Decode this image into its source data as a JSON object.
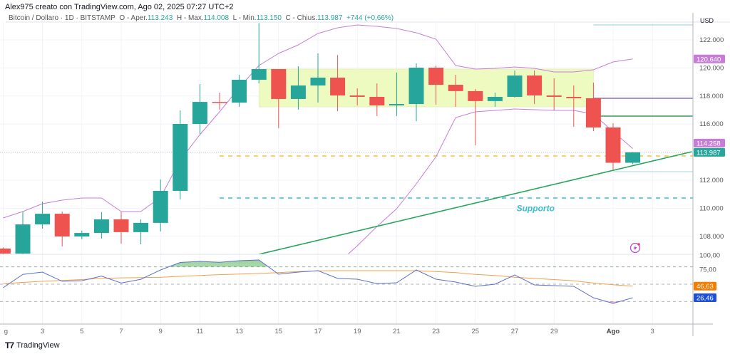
{
  "header": {
    "author_line": "Alex975 creato con TradingView.com, Ago 02, 2025 07:27 UTC+2",
    "symbol": "Bitcoin / Dollaro · 1D · BITSTAMP",
    "open_label": "O - Aper.",
    "open": "113.243",
    "high_label": "H - Max.",
    "high": "114.008",
    "low_label": "L - Min.",
    "low": "113.150",
    "close_label": "C - Chius.",
    "close": "113.987",
    "change": "+744 (+0,66%)"
  },
  "footer": {
    "brand": "TradingView",
    "logo_icon": "tradingview-logo-icon"
  },
  "colors": {
    "up": "#26a69a",
    "down": "#ef5350",
    "band": "#c77dd8",
    "rsi": "#5b6fd0",
    "rsi_ma": "#f5a04a",
    "trend": "#26a65b",
    "rect": "#eefbc0"
  },
  "chart_data": {
    "type": "candlestick",
    "currency": "USD",
    "price_ticks": [
      "122.000",
      "120.000",
      "118.000",
      "116.000",
      "112.000",
      "110.000",
      "108.000"
    ],
    "price_tick_values": [
      122000,
      120000,
      118000,
      116000,
      112000,
      110000,
      108000
    ],
    "time_ticks": [
      {
        "date": "2025-07-01",
        "label": "g"
      },
      {
        "date": "2025-07-03",
        "label": "3"
      },
      {
        "date": "2025-07-05",
        "label": "5"
      },
      {
        "date": "2025-07-07",
        "label": "7"
      },
      {
        "date": "2025-07-09",
        "label": "9"
      },
      {
        "date": "2025-07-11",
        "label": "11"
      },
      {
        "date": "2025-07-13",
        "label": "13"
      },
      {
        "date": "2025-07-15",
        "label": "15"
      },
      {
        "date": "2025-07-17",
        "label": "17"
      },
      {
        "date": "2025-07-19",
        "label": "19"
      },
      {
        "date": "2025-07-21",
        "label": "21"
      },
      {
        "date": "2025-07-23",
        "label": "23"
      },
      {
        "date": "2025-07-25",
        "label": "25"
      },
      {
        "date": "2025-07-27",
        "label": "27"
      },
      {
        "date": "2025-07-29",
        "label": "29"
      },
      {
        "date": "2025-08-01",
        "label": "Ago"
      },
      {
        "date": "2025-08-03",
        "label": "3"
      }
    ],
    "candles_columns": [
      "date",
      "open",
      "high",
      "low",
      "close"
    ],
    "candles": [
      [
        "2025-07-01",
        107130,
        107200,
        106700,
        106770
      ],
      [
        "2025-07-02",
        106770,
        109770,
        106700,
        108850
      ],
      [
        "2025-07-03",
        108850,
        110480,
        108550,
        109610
      ],
      [
        "2025-07-04",
        109610,
        109770,
        107280,
        107990
      ],
      [
        "2025-07-05",
        107990,
        108400,
        107790,
        108240
      ],
      [
        "2025-07-06",
        108240,
        109720,
        107840,
        109210
      ],
      [
        "2025-07-07",
        109210,
        109720,
        107480,
        108300
      ],
      [
        "2025-07-08",
        108300,
        109210,
        107430,
        108960
      ],
      [
        "2025-07-09",
        108960,
        112050,
        108350,
        111240
      ],
      [
        "2025-07-10",
        111240,
        116980,
        110630,
        116010
      ],
      [
        "2025-07-11",
        116010,
        118850,
        115300,
        117580
      ],
      [
        "2025-07-12",
        117580,
        118240,
        117030,
        117530
      ],
      [
        "2025-07-13",
        117530,
        119510,
        117230,
        119160
      ],
      [
        "2025-07-14",
        119160,
        123200,
        118900,
        119920
      ],
      [
        "2025-07-15",
        119920,
        119920,
        115710,
        117790
      ],
      [
        "2025-07-16",
        117790,
        120120,
        117030,
        118750
      ],
      [
        "2025-07-17",
        118750,
        121040,
        117530,
        119310
      ],
      [
        "2025-07-18",
        119310,
        120930,
        116920,
        118040
      ],
      [
        "2025-07-19",
        118040,
        118550,
        117330,
        117940
      ],
      [
        "2025-07-20",
        117940,
        118900,
        116570,
        117330
      ],
      [
        "2025-07-21",
        117330,
        119670,
        116570,
        117430
      ],
      [
        "2025-07-22",
        117430,
        120330,
        116210,
        120020
      ],
      [
        "2025-07-23",
        120020,
        120170,
        117380,
        118800
      ],
      [
        "2025-07-24",
        118800,
        119510,
        117230,
        118350
      ],
      [
        "2025-07-25",
        118350,
        118500,
        114490,
        117640
      ],
      [
        "2025-07-26",
        117640,
        118240,
        117230,
        117940
      ],
      [
        "2025-07-27",
        117940,
        119820,
        117890,
        119460
      ],
      [
        "2025-07-28",
        119460,
        119820,
        117430,
        118040
      ],
      [
        "2025-07-29",
        118040,
        119260,
        116980,
        117940
      ],
      [
        "2025-07-30",
        117940,
        118750,
        115810,
        117840
      ],
      [
        "2025-07-31",
        117840,
        118950,
        115500,
        115760
      ],
      [
        "2025-08-01",
        115760,
        116060,
        112660,
        113243
      ],
      [
        "2025-08-02",
        113243,
        114008,
        113150,
        113987
      ]
    ],
    "upper_band": [
      [
        "2025-07-01",
        109310
      ],
      [
        "2025-07-02",
        109767
      ],
      [
        "2025-07-03",
        110325
      ],
      [
        "2025-07-04",
        110579
      ],
      [
        "2025-07-05",
        110731
      ],
      [
        "2025-07-06",
        110731
      ],
      [
        "2025-07-07",
        109767
      ],
      [
        "2025-07-08",
        109767
      ],
      [
        "2025-07-09",
        110782
      ],
      [
        "2025-07-10",
        113422
      ],
      [
        "2025-07-11",
        115249
      ],
      [
        "2025-07-12",
        116873
      ],
      [
        "2025-07-13",
        118599
      ],
      [
        "2025-07-14",
        120173
      ],
      [
        "2025-07-15",
        121036
      ],
      [
        "2025-07-16",
        121645
      ],
      [
        "2025-07-17",
        122457
      ],
      [
        "2025-07-18",
        122863
      ],
      [
        "2025-07-19",
        123066
      ],
      [
        "2025-07-20",
        122964
      ],
      [
        "2025-07-21",
        122812
      ],
      [
        "2025-07-22",
        122508
      ],
      [
        "2025-07-23",
        122051
      ],
      [
        "2025-07-24",
        120173
      ],
      [
        "2025-07-25",
        119919
      ],
      [
        "2025-07-26",
        119970
      ],
      [
        "2025-07-27",
        120071
      ],
      [
        "2025-07-28",
        119970
      ],
      [
        "2025-07-29",
        119716
      ],
      [
        "2025-07-30",
        119716
      ],
      [
        "2025-07-31",
        119868
      ],
      [
        "2025-08-01",
        120426
      ],
      [
        "2025-08-02",
        120640
      ]
    ],
    "lower_band": [
      [
        "2025-07-18",
        106061
      ],
      [
        "2025-07-19",
        107330
      ],
      [
        "2025-07-20",
        108701
      ],
      [
        "2025-07-21",
        109970
      ],
      [
        "2025-07-22",
        111747
      ],
      [
        "2025-07-23",
        113676
      ],
      [
        "2025-07-24",
        116467
      ],
      [
        "2025-07-25",
        116873
      ],
      [
        "2025-07-26",
        116975
      ],
      [
        "2025-07-27",
        117076
      ],
      [
        "2025-07-28",
        117025
      ],
      [
        "2025-07-29",
        116975
      ],
      [
        "2025-07-30",
        116975
      ],
      [
        "2025-07-31",
        116721
      ],
      [
        "2025-08-01",
        115452
      ],
      [
        "2025-08-02",
        114258
      ]
    ],
    "price_labels": [
      {
        "text": "120.640",
        "value": 120640,
        "color": "#c77dd8"
      },
      {
        "text": "114.258",
        "value": 114258,
        "color": "#c77dd8"
      },
      {
        "text": "113.987",
        "value": 113987,
        "color": "#26a69a"
      }
    ],
    "range_box": {
      "from": "2025-07-14",
      "to": "2025-07-31",
      "low": 117228,
      "high": 119919
    },
    "hlines": [
      {
        "from": "2025-07-31",
        "value": 123066,
        "color": "#b7dcef",
        "dash": false
      },
      {
        "from": "2025-07-31",
        "value": 117838,
        "color": "#8a6bc7",
        "dash": false
      },
      {
        "from": "2025-07-31",
        "value": 116569,
        "color": "#3c9a55",
        "dash": false
      },
      {
        "from": "2025-07-12",
        "value": 113726,
        "color": "#f4c04a",
        "dash": true
      },
      {
        "from": "2025-08-01",
        "value": 112609,
        "color": "#c6e3ea",
        "dash": false
      },
      {
        "from": "2025-07-12",
        "value": 110731,
        "color": "#3bbfd0",
        "dash": true
      }
    ],
    "trendline": [
      [
        "2025-07-14",
        106720
      ],
      [
        "2025-08-05",
        114030
      ]
    ],
    "annotation": {
      "text": "Supporto",
      "date": "2025-07-28",
      "value": 110000,
      "color": "#3bbfd0"
    },
    "alert_icon": "lightning-alert-icon",
    "rsi": {
      "ticks": [
        "100,00",
        "75,00"
      ],
      "tick_values": [
        100,
        75
      ],
      "levels": [
        80,
        50,
        20
      ],
      "labels": [
        {
          "text": "46,63",
          "value": 46.63,
          "color": "#f57c00"
        },
        {
          "text": "26,46",
          "value": 26.46,
          "color": "#1e4fd8"
        }
      ],
      "line": [
        43.8,
        67,
        71,
        55,
        56,
        64,
        52,
        58.5,
        74.6,
        87.6,
        89.5,
        88,
        90.7,
        92,
        67.2,
        71,
        73.4,
        60,
        58.6,
        51,
        52.4,
        74.7,
        58.6,
        53.7,
        46.3,
        50,
        66,
        48.7,
        47.5,
        46.3,
        26.5,
        16.6,
        26.46
      ],
      "ma": [
        51,
        53,
        55,
        56.5,
        58,
        60,
        61,
        61.5,
        62,
        63.5,
        65,
        66.5,
        67.5,
        68.5,
        70,
        72,
        73,
        73.4,
        73.4,
        73.4,
        73.4,
        73.4,
        72,
        70,
        67,
        65,
        62,
        60,
        58,
        56,
        52,
        49,
        46.63
      ]
    }
  }
}
